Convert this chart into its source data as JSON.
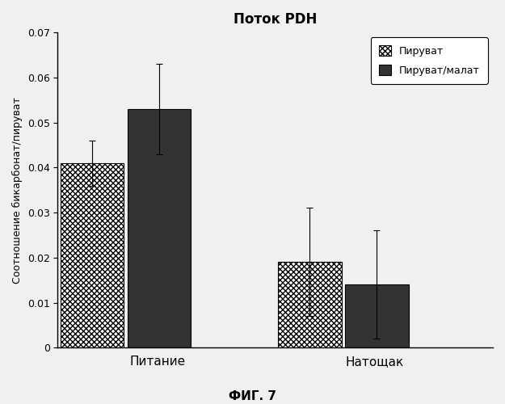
{
  "title": "Поток PDH",
  "ylabel": "Соотношение бикарбонат/пируват",
  "xlabel_fig": "ФИГ. 7",
  "groups": [
    "Питание",
    "Натощак"
  ],
  "series": [
    "Пируват",
    "Пируват/малат"
  ],
  "values": [
    [
      0.041,
      0.053
    ],
    [
      0.019,
      0.014
    ]
  ],
  "errors": [
    [
      0.005,
      0.01
    ],
    [
      0.012,
      0.012
    ]
  ],
  "ylim": [
    0,
    0.07
  ],
  "yticks": [
    0,
    0.01,
    0.02,
    0.03,
    0.04,
    0.05,
    0.06,
    0.07
  ],
  "bar_width": 0.35,
  "group_centers": [
    1.0,
    2.2
  ],
  "background_color": "#f0f0f0",
  "plot_bg_color": "#f0f0f0"
}
